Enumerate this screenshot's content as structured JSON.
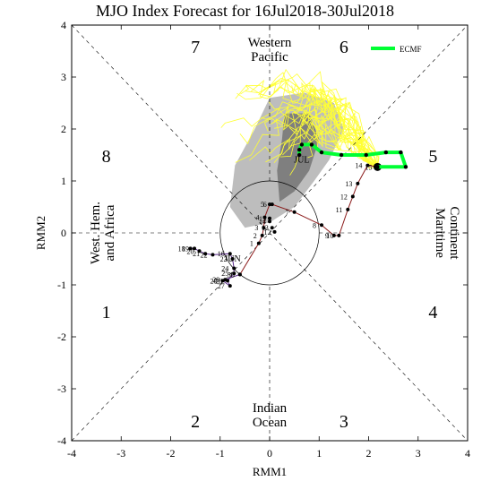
{
  "title": "MJO Index Forecast for 16Jul2018-30Jul2018",
  "chart_data": {
    "type": "scatter",
    "title": "MJO Index Forecast for 16Jul2018-30Jul2018",
    "xlabel": "RMM1",
    "ylabel": "RMM2",
    "xlim": [
      -4,
      4
    ],
    "ylim": [
      -4,
      4
    ],
    "xticks": [
      "-4",
      "-3",
      "-2",
      "-1",
      "0",
      "1",
      "2",
      "3",
      "4"
    ],
    "yticks": [
      "-4",
      "-3",
      "-2",
      "-1",
      "0",
      "1",
      "2",
      "3",
      "4"
    ],
    "phases": [
      {
        "label": "1",
        "x": -3.3,
        "y": -1.5
      },
      {
        "label": "2",
        "x": -1.5,
        "y": -3.6
      },
      {
        "label": "3",
        "x": 1.5,
        "y": -3.6
      },
      {
        "label": "4",
        "x": 3.3,
        "y": -1.5
      },
      {
        "label": "5",
        "x": 3.3,
        "y": 1.5
      },
      {
        "label": "6",
        "x": 1.5,
        "y": 3.6
      },
      {
        "label": "7",
        "x": -1.5,
        "y": 3.6
      },
      {
        "label": "8",
        "x": -3.3,
        "y": 1.5
      }
    ],
    "regions": {
      "top": [
        "Western",
        "Pacific"
      ],
      "bottom": [
        "Indian",
        "Ocean"
      ],
      "left": [
        "West. Hem.",
        "and Africa"
      ],
      "right": [
        "Maritime",
        "Continent"
      ]
    },
    "legend": {
      "label": "ECMF",
      "color": "#00ff33",
      "placement": "top-right"
    },
    "month_labels": [
      {
        "text": "JUN",
        "x": -0.75,
        "y": -0.55,
        "color": "#7a2a9a"
      },
      {
        "text": "JUL",
        "x": 0.65,
        "y": 1.35,
        "color": "#7a2a9a"
      }
    ],
    "observed": {
      "name": "",
      "color_jun": "#5a2a8a",
      "color_jul": "#8b1a1a",
      "jun_points": [
        {
          "d": "18",
          "x": -1.6,
          "y": -0.3
        },
        {
          "d": "19",
          "x": -1.52,
          "y": -0.3
        },
        {
          "d": "20",
          "x": -1.42,
          "y": -0.35
        },
        {
          "d": "21",
          "x": -1.3,
          "y": -0.4
        },
        {
          "d": "22",
          "x": -1.15,
          "y": -0.42
        },
        {
          "d": "16",
          "x": -0.8,
          "y": -0.4
        },
        {
          "d": "23",
          "x": -0.75,
          "y": -0.5
        },
        {
          "d": "24",
          "x": -0.72,
          "y": -0.68
        },
        {
          "d": "25",
          "x": -0.72,
          "y": -0.78
        },
        {
          "d": "26",
          "x": -0.85,
          "y": -0.92
        },
        {
          "d": "27",
          "x": -0.8,
          "y": -1.02
        },
        {
          "d": "28",
          "x": -0.95,
          "y": -0.92
        },
        {
          "d": "29",
          "x": -0.9,
          "y": -0.9
        },
        {
          "d": "30",
          "x": -0.6,
          "y": -0.8
        }
      ],
      "jul_points": [
        {
          "d": "1",
          "x": -0.22,
          "y": -0.2
        },
        {
          "d": "2",
          "x": -0.15,
          "y": -0.05
        },
        {
          "d": "3",
          "x": -0.12,
          "y": 0.1
        },
        {
          "d": "4",
          "x": -0.1,
          "y": 0.3
        },
        {
          "d": "5",
          "x": 0.0,
          "y": 0.55
        },
        {
          "d": "6",
          "x": 0.05,
          "y": 0.55
        },
        {
          "d": "7",
          "x": 0.5,
          "y": 0.4
        },
        {
          "d": "8",
          "x": 1.05,
          "y": 0.15
        },
        {
          "d": "9",
          "x": 1.3,
          "y": -0.05
        },
        {
          "d": "10",
          "x": 1.4,
          "y": -0.05
        },
        {
          "d": "11",
          "x": 1.58,
          "y": 0.45
        },
        {
          "d": "12",
          "x": 1.68,
          "y": 0.7
        },
        {
          "d": "13",
          "x": 1.78,
          "y": 0.95
        },
        {
          "d": "14",
          "x": 1.98,
          "y": 1.3
        },
        {
          "d": "15",
          "x": 2.18,
          "y": 1.27
        }
      ],
      "late_points": [
        {
          "d": "15",
          "x": 0.0,
          "y": 0.28
        },
        {
          "d": "14",
          "x": 0.0,
          "y": 0.22
        },
        {
          "d": "13",
          "x": 0.05,
          "y": 0.1
        },
        {
          "d": "12",
          "x": 0.1,
          "y": 0.02
        }
      ]
    },
    "forecast": {
      "name": "ECMF",
      "color": "#00ff33",
      "x": [
        2.18,
        2.75,
        2.65,
        2.35,
        1.95,
        1.45,
        1.05,
        0.85,
        0.65,
        0.6,
        0.6
      ],
      "y": [
        1.27,
        1.27,
        1.55,
        1.55,
        1.5,
        1.5,
        1.55,
        1.7,
        1.7,
        1.6,
        1.5
      ]
    },
    "ensemble": {
      "color": "#ffff33",
      "members": 30
    },
    "spread": {
      "color_outer": "#bdbdbd",
      "color_inner": "#7f7f7f"
    }
  }
}
